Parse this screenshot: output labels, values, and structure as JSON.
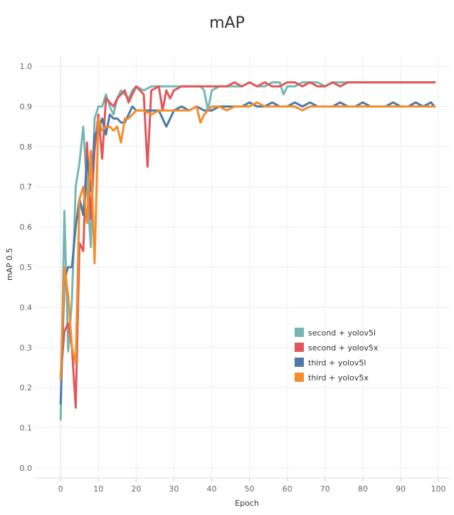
{
  "chart_data": {
    "type": "line",
    "title": "mAP",
    "xlabel": "Epoch",
    "ylabel": "mAP 0.5",
    "xlim": [
      -7,
      103
    ],
    "ylim": [
      -0.025,
      1.025
    ],
    "xticks": [
      "0",
      "10",
      "20",
      "30",
      "40",
      "50",
      "60",
      "70",
      "80",
      "90",
      "100"
    ],
    "yticks": [
      "0.0",
      "0.1",
      "0.2",
      "0.3",
      "0.4",
      "0.5",
      "0.6",
      "0.7",
      "0.8",
      "0.9",
      "1.0"
    ],
    "grid": true,
    "legend_position": "right-center",
    "series": [
      {
        "name": "second + yolov5l",
        "color": "#76b7b2",
        "x": [
          0,
          1,
          2,
          3,
          4,
          5,
          6,
          7,
          8,
          9,
          10,
          11,
          12,
          13,
          14,
          15,
          16,
          17,
          18,
          19,
          20,
          22,
          24,
          26,
          28,
          30,
          32,
          34,
          36,
          37,
          38,
          39,
          40,
          42,
          44,
          46,
          48,
          50,
          52,
          54,
          56,
          58,
          59,
          60,
          62,
          64,
          66,
          68,
          70,
          72,
          74,
          76,
          78,
          80,
          82,
          84,
          86,
          88,
          90,
          92,
          94,
          96,
          98,
          99
        ],
        "y": [
          0.12,
          0.64,
          0.29,
          0.42,
          0.7,
          0.76,
          0.85,
          0.7,
          0.55,
          0.87,
          0.9,
          0.9,
          0.93,
          0.9,
          0.88,
          0.92,
          0.94,
          0.93,
          0.92,
          0.94,
          0.95,
          0.94,
          0.95,
          0.95,
          0.95,
          0.95,
          0.95,
          0.95,
          0.95,
          0.95,
          0.94,
          0.89,
          0.94,
          0.95,
          0.95,
          0.95,
          0.95,
          0.96,
          0.95,
          0.95,
          0.96,
          0.96,
          0.93,
          0.95,
          0.95,
          0.96,
          0.96,
          0.96,
          0.95,
          0.96,
          0.96,
          0.96,
          0.96,
          0.96,
          0.96,
          0.96,
          0.96,
          0.96,
          0.96,
          0.96,
          0.96,
          0.96,
          0.96,
          0.96
        ]
      },
      {
        "name": "second + yolov5x",
        "color": "#e15759",
        "x": [
          0,
          1,
          2,
          3,
          4,
          5,
          6,
          7,
          8,
          9,
          10,
          11,
          12,
          13,
          14,
          15,
          16,
          17,
          18,
          19,
          20,
          21,
          22,
          23,
          24,
          26,
          27,
          28,
          29,
          30,
          32,
          34,
          36,
          38,
          40,
          42,
          44,
          46,
          48,
          50,
          52,
          54,
          56,
          58,
          60,
          62,
          64,
          66,
          68,
          70,
          72,
          74,
          76,
          78,
          80,
          82,
          84,
          86,
          88,
          90,
          92,
          94,
          96,
          98,
          99
        ],
        "y": [
          0.23,
          0.34,
          0.36,
          0.3,
          0.15,
          0.56,
          0.54,
          0.81,
          0.62,
          0.79,
          0.88,
          0.77,
          0.92,
          0.91,
          0.9,
          0.92,
          0.93,
          0.94,
          0.91,
          0.93,
          0.95,
          0.94,
          0.93,
          0.75,
          0.94,
          0.95,
          0.89,
          0.94,
          0.92,
          0.94,
          0.95,
          0.95,
          0.95,
          0.95,
          0.95,
          0.95,
          0.95,
          0.96,
          0.95,
          0.96,
          0.95,
          0.96,
          0.95,
          0.95,
          0.96,
          0.96,
          0.95,
          0.96,
          0.95,
          0.95,
          0.96,
          0.95,
          0.96,
          0.96,
          0.96,
          0.96,
          0.96,
          0.96,
          0.96,
          0.96,
          0.96,
          0.96,
          0.96,
          0.96,
          0.96
        ]
      },
      {
        "name": "third + yolov5l",
        "color": "#4e79a7",
        "x": [
          0,
          1,
          2,
          3,
          4,
          5,
          6,
          7,
          8,
          9,
          10,
          11,
          12,
          13,
          14,
          15,
          16,
          17,
          18,
          19,
          20,
          22,
          24,
          26,
          28,
          30,
          32,
          34,
          36,
          38,
          40,
          42,
          44,
          46,
          48,
          50,
          52,
          54,
          56,
          58,
          60,
          62,
          64,
          66,
          68,
          70,
          72,
          74,
          76,
          78,
          80,
          82,
          84,
          86,
          88,
          90,
          92,
          94,
          96,
          98,
          99
        ],
        "y": [
          0.16,
          0.47,
          0.5,
          0.5,
          0.6,
          0.67,
          0.63,
          0.77,
          0.69,
          0.83,
          0.84,
          0.87,
          0.83,
          0.88,
          0.87,
          0.87,
          0.86,
          0.86,
          0.88,
          0.9,
          0.89,
          0.89,
          0.89,
          0.89,
          0.85,
          0.89,
          0.9,
          0.89,
          0.9,
          0.89,
          0.89,
          0.9,
          0.9,
          0.9,
          0.9,
          0.91,
          0.9,
          0.9,
          0.91,
          0.9,
          0.9,
          0.91,
          0.9,
          0.91,
          0.9,
          0.9,
          0.9,
          0.91,
          0.9,
          0.9,
          0.91,
          0.9,
          0.9,
          0.9,
          0.91,
          0.9,
          0.9,
          0.91,
          0.9,
          0.91,
          0.9
        ]
      },
      {
        "name": "third + yolov5x",
        "color": "#f28e2b",
        "x": [
          0,
          1,
          2,
          3,
          4,
          5,
          6,
          7,
          8,
          9,
          10,
          11,
          12,
          13,
          14,
          15,
          16,
          17,
          18,
          19,
          20,
          22,
          24,
          26,
          28,
          30,
          32,
          34,
          36,
          37,
          38,
          40,
          42,
          44,
          46,
          48,
          50,
          52,
          54,
          56,
          58,
          60,
          62,
          64,
          66,
          68,
          70,
          72,
          74,
          76,
          78,
          80,
          82,
          84,
          86,
          88,
          90,
          92,
          94,
          96,
          98,
          99
        ],
        "y": [
          0.22,
          0.5,
          0.43,
          0.3,
          0.26,
          0.67,
          0.7,
          0.61,
          0.79,
          0.51,
          0.87,
          0.84,
          0.85,
          0.85,
          0.84,
          0.85,
          0.81,
          0.87,
          0.87,
          0.88,
          0.89,
          0.89,
          0.88,
          0.89,
          0.89,
          0.89,
          0.89,
          0.89,
          0.9,
          0.86,
          0.88,
          0.9,
          0.9,
          0.89,
          0.9,
          0.9,
          0.9,
          0.91,
          0.9,
          0.9,
          0.9,
          0.9,
          0.9,
          0.89,
          0.9,
          0.9,
          0.9,
          0.9,
          0.9,
          0.9,
          0.9,
          0.9,
          0.9,
          0.9,
          0.9,
          0.9,
          0.9,
          0.9,
          0.9,
          0.9,
          0.9,
          0.9
        ]
      }
    ]
  }
}
